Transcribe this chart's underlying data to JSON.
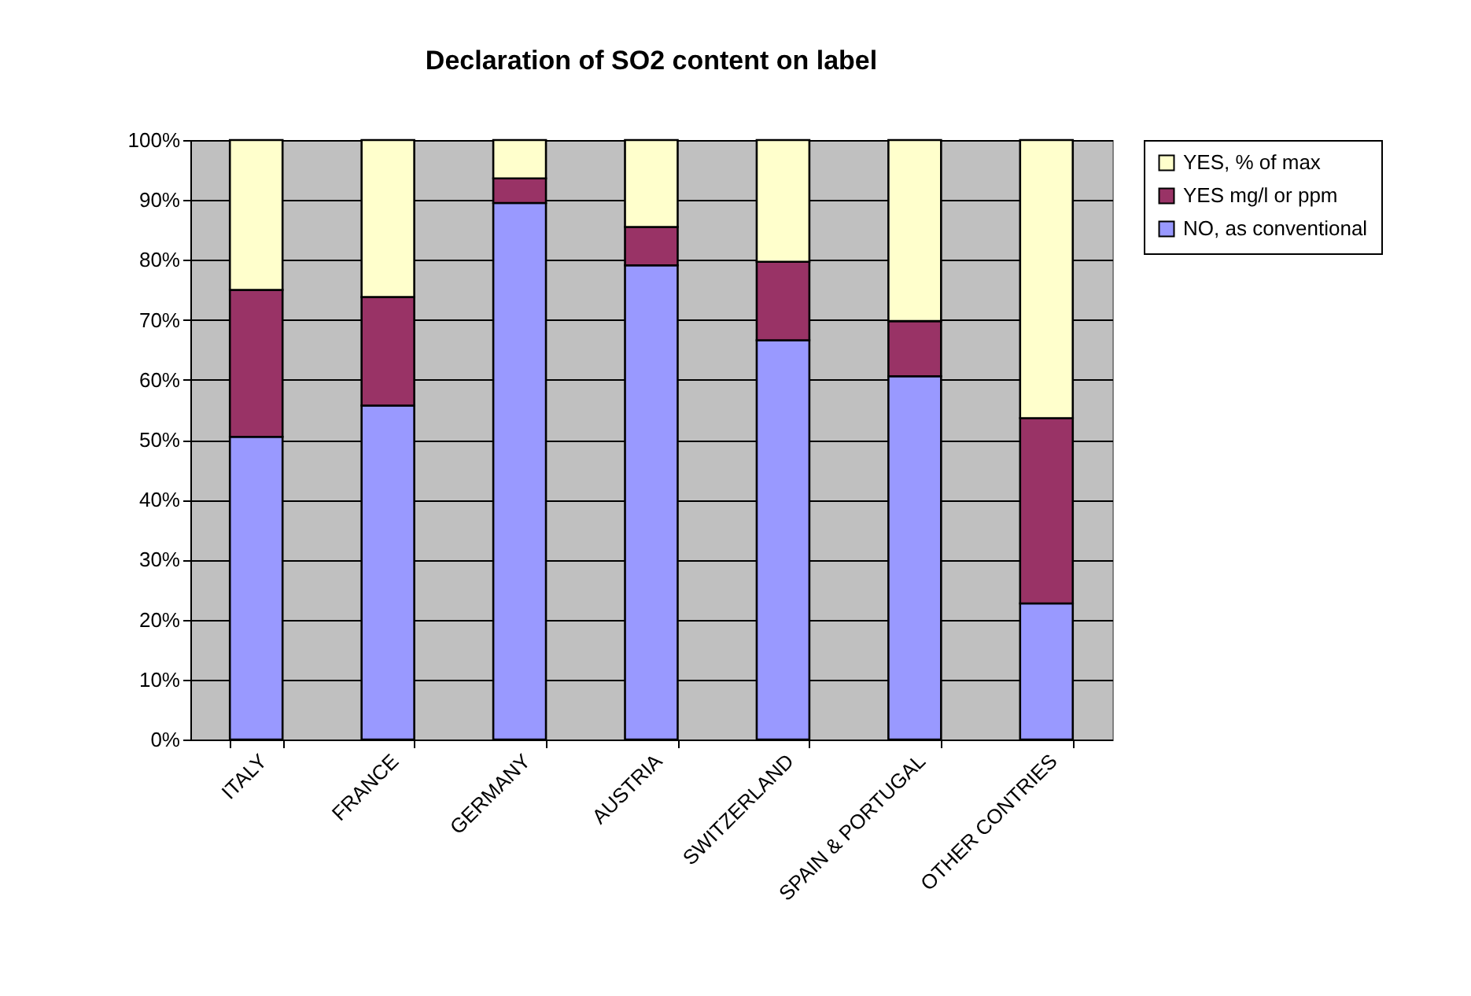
{
  "chart_data": {
    "type": "bar",
    "title": "Declaration of SO2 content on label",
    "stacked": true,
    "legend": "right",
    "grid": "y",
    "categories": [
      "ITALY",
      "FRANCE",
      "GERMANY",
      "AUSTRIA",
      "SWITZERLAND",
      "SPAIN & PORTUGAL",
      "OTHER CONTRIES"
    ],
    "series": [
      {
        "name": "NO, as conventional",
        "color": "#9999ff",
        "values": [
          50.5,
          55.7,
          89.5,
          79.1,
          66.6,
          60.6,
          22.7
        ]
      },
      {
        "name": "YES mg/l or ppm",
        "color": "#993366",
        "values": [
          24.5,
          18.1,
          4.1,
          6.4,
          13.1,
          9.2,
          30.9
        ]
      },
      {
        "name": "YES, % of max",
        "color": "#ffffcc",
        "values": [
          25.0,
          26.2,
          6.4,
          14.5,
          20.3,
          30.2,
          46.4
        ]
      }
    ],
    "ylim": [
      0,
      100
    ],
    "yticks": [
      {
        "value": 0,
        "label": "0%"
      },
      {
        "value": 10,
        "label": "10%"
      },
      {
        "value": 20,
        "label": "20%"
      },
      {
        "value": 30,
        "label": "30%"
      },
      {
        "value": 40,
        "label": "40%"
      },
      {
        "value": 50,
        "label": "50%"
      },
      {
        "value": 60,
        "label": "60%"
      },
      {
        "value": 70,
        "label": "70%"
      },
      {
        "value": 80,
        "label": "80%"
      },
      {
        "value": 90,
        "label": "90%"
      },
      {
        "value": 100,
        "label": "100%"
      }
    ]
  }
}
